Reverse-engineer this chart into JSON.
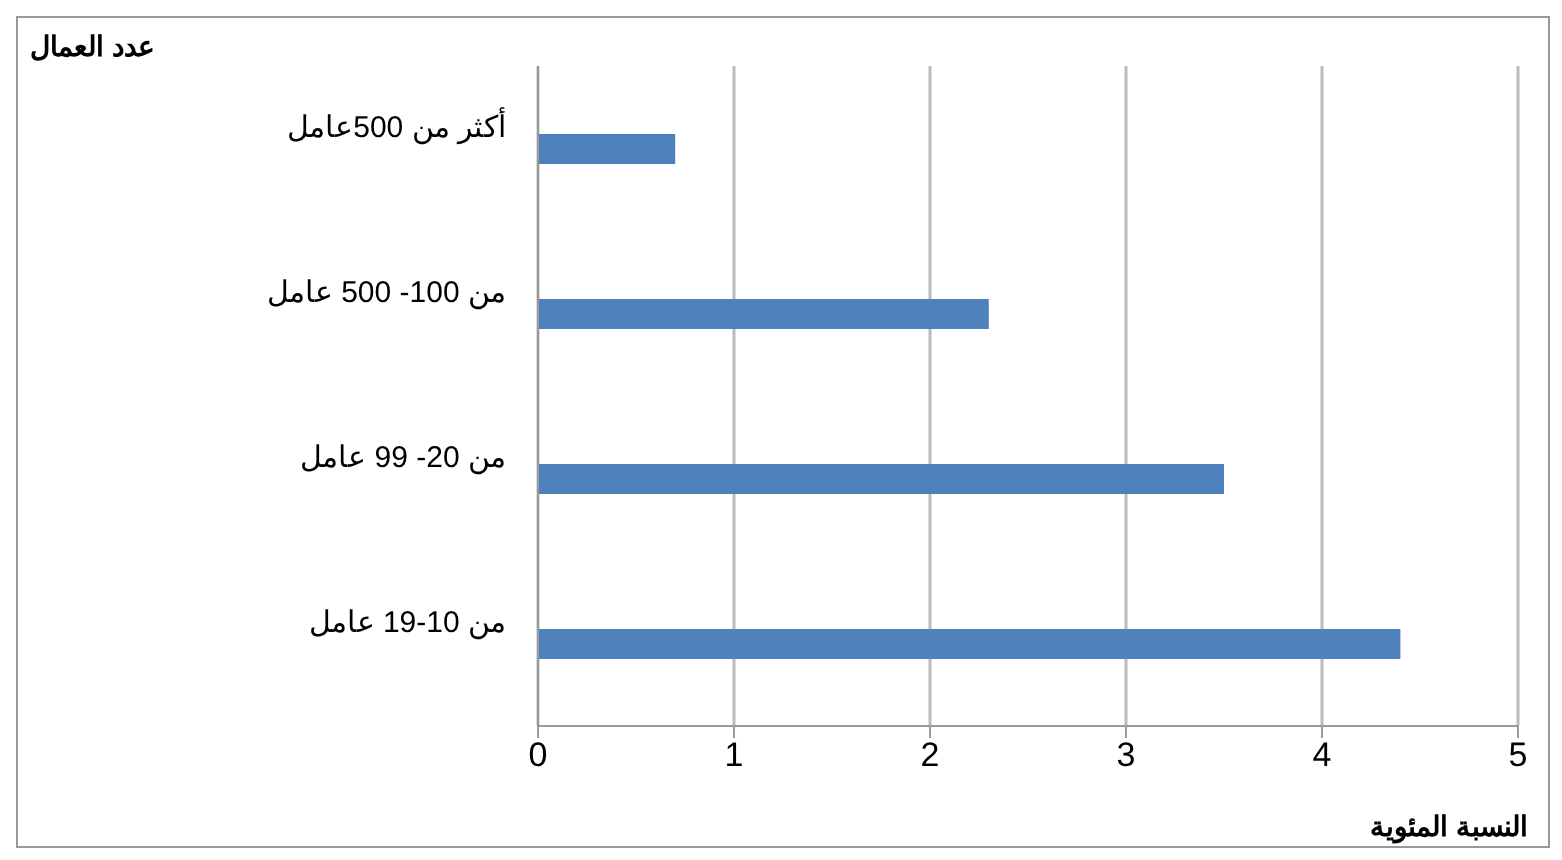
{
  "chart_data": {
    "type": "bar",
    "orientation": "horizontal",
    "ylabel": "عدد العمال",
    "xlabel": "النسبة المئوية",
    "categories": [
      "أكثر من 500عامل",
      "من 100- 500 عامل",
      "من 20- 99 عامل",
      "من 10-19 عامل"
    ],
    "values": [
      0.7,
      2.3,
      3.5,
      4.4
    ],
    "color": "#4f81bd",
    "xlim": [
      0,
      5
    ],
    "xticks": [
      0,
      1,
      2,
      3,
      4,
      5
    ],
    "grid": "x"
  }
}
